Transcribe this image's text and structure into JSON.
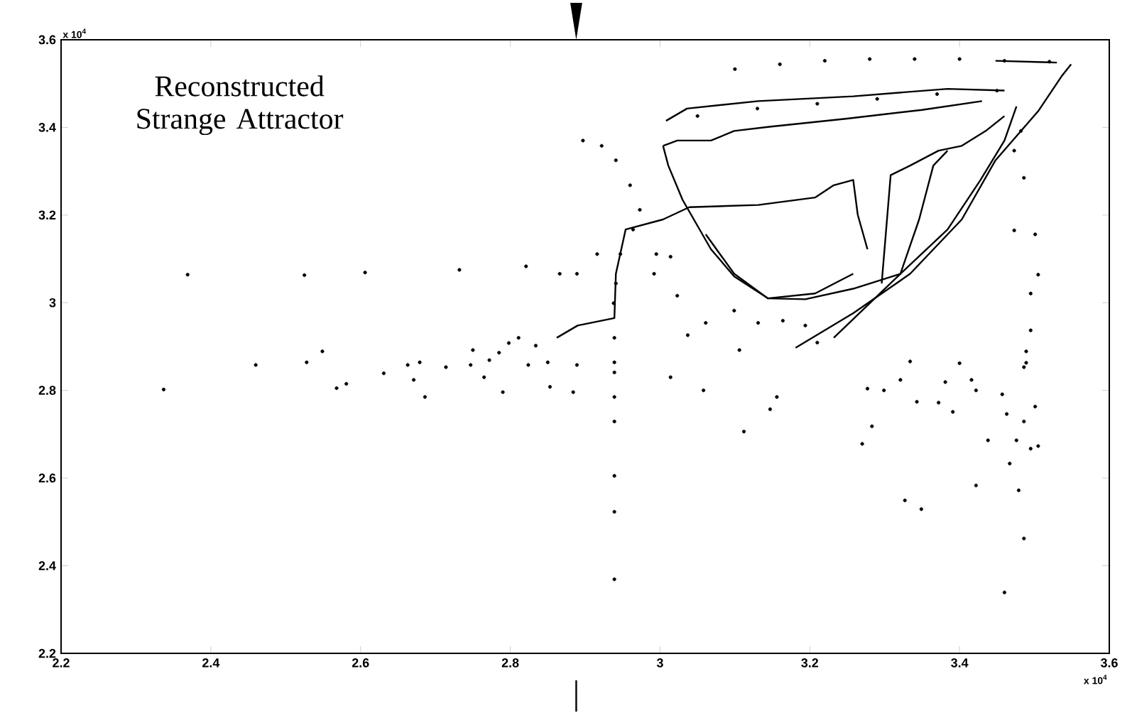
{
  "chart_data": {
    "type": "scatter",
    "title": "Reconstructed Strange Attractor",
    "annotations": [
      "x 10$^{4}$",
      "x 10$^{4}$"
    ],
    "xlim": [
      2.2,
      3.6
    ],
    "ylim": [
      2.2,
      3.6
    ],
    "xticks": [
      2.2,
      2.4,
      2.6,
      2.8,
      3,
      3.2,
      3.4,
      3.6
    ],
    "yticks": [
      2.2,
      2.4,
      2.6,
      2.8,
      3,
      3.2,
      3.4,
      3.6
    ],
    "series": [
      {
        "marker": "circle",
        "color": "#000000",
        "x": [
          2.369,
          2.337,
          2.46,
          2.525,
          2.528,
          2.549,
          2.568,
          2.581,
          2.606,
          2.631,
          2.663,
          2.671,
          2.679,
          2.686,
          2.714,
          2.732,
          2.75,
          2.747,
          2.765,
          2.772,
          2.785,
          2.79,
          2.798,
          2.811,
          2.821,
          2.824,
          2.834,
          2.85,
          2.853,
          2.866,
          2.939,
          2.939,
          2.939,
          2.939,
          2.939,
          2.939,
          2.939,
          2.939,
          2.897,
          2.922,
          2.916,
          2.889,
          2.889,
          2.884,
          2.941,
          2.96,
          2.973,
          2.964,
          2.947,
          2.941,
          2.938,
          2.995,
          3.014,
          3.023,
          2.992,
          3.058,
          3.014,
          3.106,
          3.112,
          3.147,
          3.156,
          3.037,
          3.061,
          3.099,
          3.131,
          3.164,
          3.194,
          3.21,
          3.27,
          3.283,
          3.277,
          3.299,
          3.321,
          3.334,
          3.343,
          3.372,
          3.381,
          3.391,
          3.4,
          3.416,
          3.422,
          3.438,
          3.422,
          3.327,
          3.349,
          3.457,
          3.463,
          3.467,
          3.476,
          3.479,
          3.486,
          3.46,
          3.486,
          3.489,
          3.495,
          3.505,
          3.501,
          3.489,
          3.486,
          3.473,
          3.501,
          3.505,
          3.495,
          3.495,
          3.486,
          3.473,
          3.482,
          3.1,
          3.16,
          3.22,
          3.28,
          3.34,
          3.4,
          3.46,
          3.52,
          3.05,
          3.13,
          3.21,
          3.29,
          3.37,
          3.45
        ],
        "values": [
          3.064,
          2.802,
          2.858,
          3.063,
          2.864,
          2.889,
          2.805,
          2.815,
          3.069,
          2.839,
          2.858,
          2.824,
          2.864,
          2.785,
          2.853,
          3.075,
          2.892,
          2.858,
          2.83,
          2.869,
          2.886,
          2.796,
          2.908,
          2.92,
          3.083,
          2.858,
          2.902,
          2.864,
          2.808,
          3.066,
          2.92,
          2.864,
          2.841,
          2.785,
          2.729,
          2.605,
          2.523,
          2.369,
          3.37,
          3.358,
          3.111,
          3.066,
          2.858,
          2.796,
          3.325,
          3.268,
          3.212,
          3.167,
          3.111,
          3.044,
          2.999,
          3.111,
          3.105,
          3.016,
          3.066,
          2.8,
          2.83,
          2.892,
          2.706,
          2.757,
          2.785,
          2.926,
          2.954,
          2.982,
          2.954,
          2.959,
          2.948,
          2.909,
          2.678,
          2.718,
          2.804,
          2.8,
          2.824,
          2.866,
          2.774,
          2.772,
          2.819,
          2.751,
          2.862,
          2.824,
          2.8,
          2.686,
          2.583,
          2.549,
          2.529,
          2.791,
          2.746,
          2.633,
          2.686,
          2.572,
          2.462,
          2.339,
          2.729,
          2.863,
          2.667,
          2.673,
          2.763,
          2.889,
          2.853,
          3.165,
          3.156,
          3.064,
          3.021,
          2.937,
          3.285,
          3.347,
          3.392,
          3.533,
          3.544,
          3.552,
          3.556,
          3.556,
          3.556,
          3.552,
          3.55,
          3.426,
          3.443,
          3.454,
          3.465,
          3.476,
          3.484
        ]
      },
      {
        "type": "line",
        "marker": "none",
        "color": "#000000",
        "x": [
          2.862,
          2.89,
          2.939,
          2.941,
          2.954,
          3.004,
          3.039,
          3.131,
          3.207,
          3.232,
          3.258,
          3.264,
          3.277
        ],
        "values": [
          2.92,
          2.948,
          2.965,
          3.066,
          3.167,
          3.19,
          3.218,
          3.223,
          3.24,
          3.268,
          3.28,
          3.201,
          3.122
        ]
      },
      {
        "type": "line",
        "marker": "none",
        "color": "#000000",
        "x": [
          3.061,
          3.099,
          3.144,
          3.207,
          3.258
        ],
        "values": [
          3.156,
          3.066,
          3.01,
          3.021,
          3.066
        ]
      },
      {
        "type": "line",
        "marker": "none",
        "color": "#000000",
        "x": [
          3.004,
          3.011,
          3.03,
          3.068,
          3.099,
          3.144,
          3.194,
          3.258,
          3.321,
          3.384,
          3.428,
          3.46,
          3.476
        ],
        "values": [
          3.358,
          3.313,
          3.235,
          3.122,
          3.06,
          3.01,
          3.008,
          3.032,
          3.066,
          3.167,
          3.28,
          3.37,
          3.448
        ]
      },
      {
        "type": "line",
        "marker": "none",
        "color": "#000000",
        "x": [
          3.008,
          3.036,
          3.131,
          3.258,
          3.384,
          3.46
        ],
        "values": [
          3.415,
          3.443,
          3.46,
          3.471,
          3.488,
          3.484
        ]
      },
      {
        "type": "line",
        "marker": "none",
        "color": "#000000",
        "x": [
          3.181,
          3.258,
          3.334,
          3.403,
          3.448,
          3.505,
          3.536,
          3.549
        ],
        "values": [
          2.897,
          2.976,
          3.066,
          3.19,
          3.325,
          3.437,
          3.516,
          3.544
        ]
      },
      {
        "type": "line",
        "marker": "none",
        "color": "#000000",
        "x": [
          3.448,
          3.511,
          3.53
        ],
        "values": [
          3.552,
          3.549,
          3.548
        ]
      },
      {
        "type": "line",
        "marker": "none",
        "color": "#000000",
        "x": [
          3.296,
          3.308,
          3.334,
          3.372,
          3.403,
          3.435,
          3.46
        ],
        "values": [
          3.044,
          3.291,
          3.313,
          3.347,
          3.358,
          3.392,
          3.426
        ]
      },
      {
        "type": "line",
        "marker": "none",
        "color": "#000000",
        "x": [
          3.232,
          3.321,
          3.346,
          3.365,
          3.384
        ],
        "values": [
          2.92,
          3.066,
          3.19,
          3.313,
          3.347
        ]
      },
      {
        "type": "line",
        "marker": "none",
        "color": "#000000",
        "x": [
          3.004,
          3.023,
          3.068,
          3.099,
          3.144,
          3.25,
          3.35,
          3.43
        ],
        "values": [
          3.358,
          3.37,
          3.37,
          3.392,
          3.401,
          3.42,
          3.44,
          3.46
        ]
      }
    ]
  }
}
